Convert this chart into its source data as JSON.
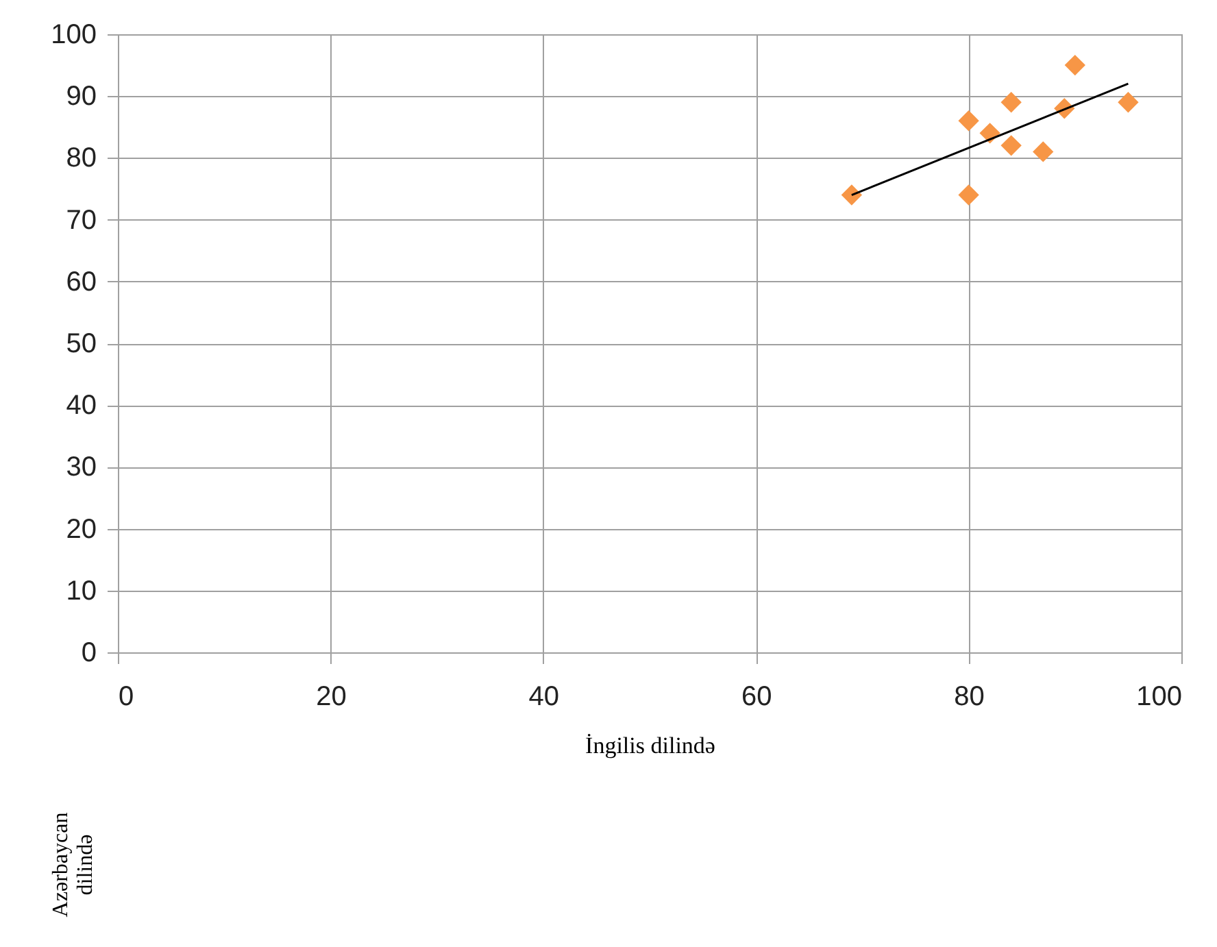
{
  "chart_data": {
    "type": "scatter",
    "xlabel": "İngilis dilində",
    "annotations": [
      "Azərbaycan dilində"
    ],
    "xlim": [
      0,
      100
    ],
    "ylim": [
      0,
      100
    ],
    "xticks": [
      0,
      20,
      40,
      60,
      80,
      100
    ],
    "yticks": [
      0,
      10,
      20,
      30,
      40,
      50,
      60,
      70,
      80,
      90,
      100
    ],
    "grid": true,
    "series": [
      {
        "marker": "diamond",
        "color": "#f79646",
        "x": [
          69,
          80,
          80,
          82,
          84,
          84,
          87,
          89,
          90,
          95
        ],
        "values": [
          74,
          86,
          74,
          84,
          89,
          82,
          81,
          88,
          95,
          89
        ]
      },
      {
        "type": "line",
        "color": "#000000",
        "x": [
          69,
          95
        ],
        "values": [
          74,
          92
        ]
      }
    ]
  }
}
